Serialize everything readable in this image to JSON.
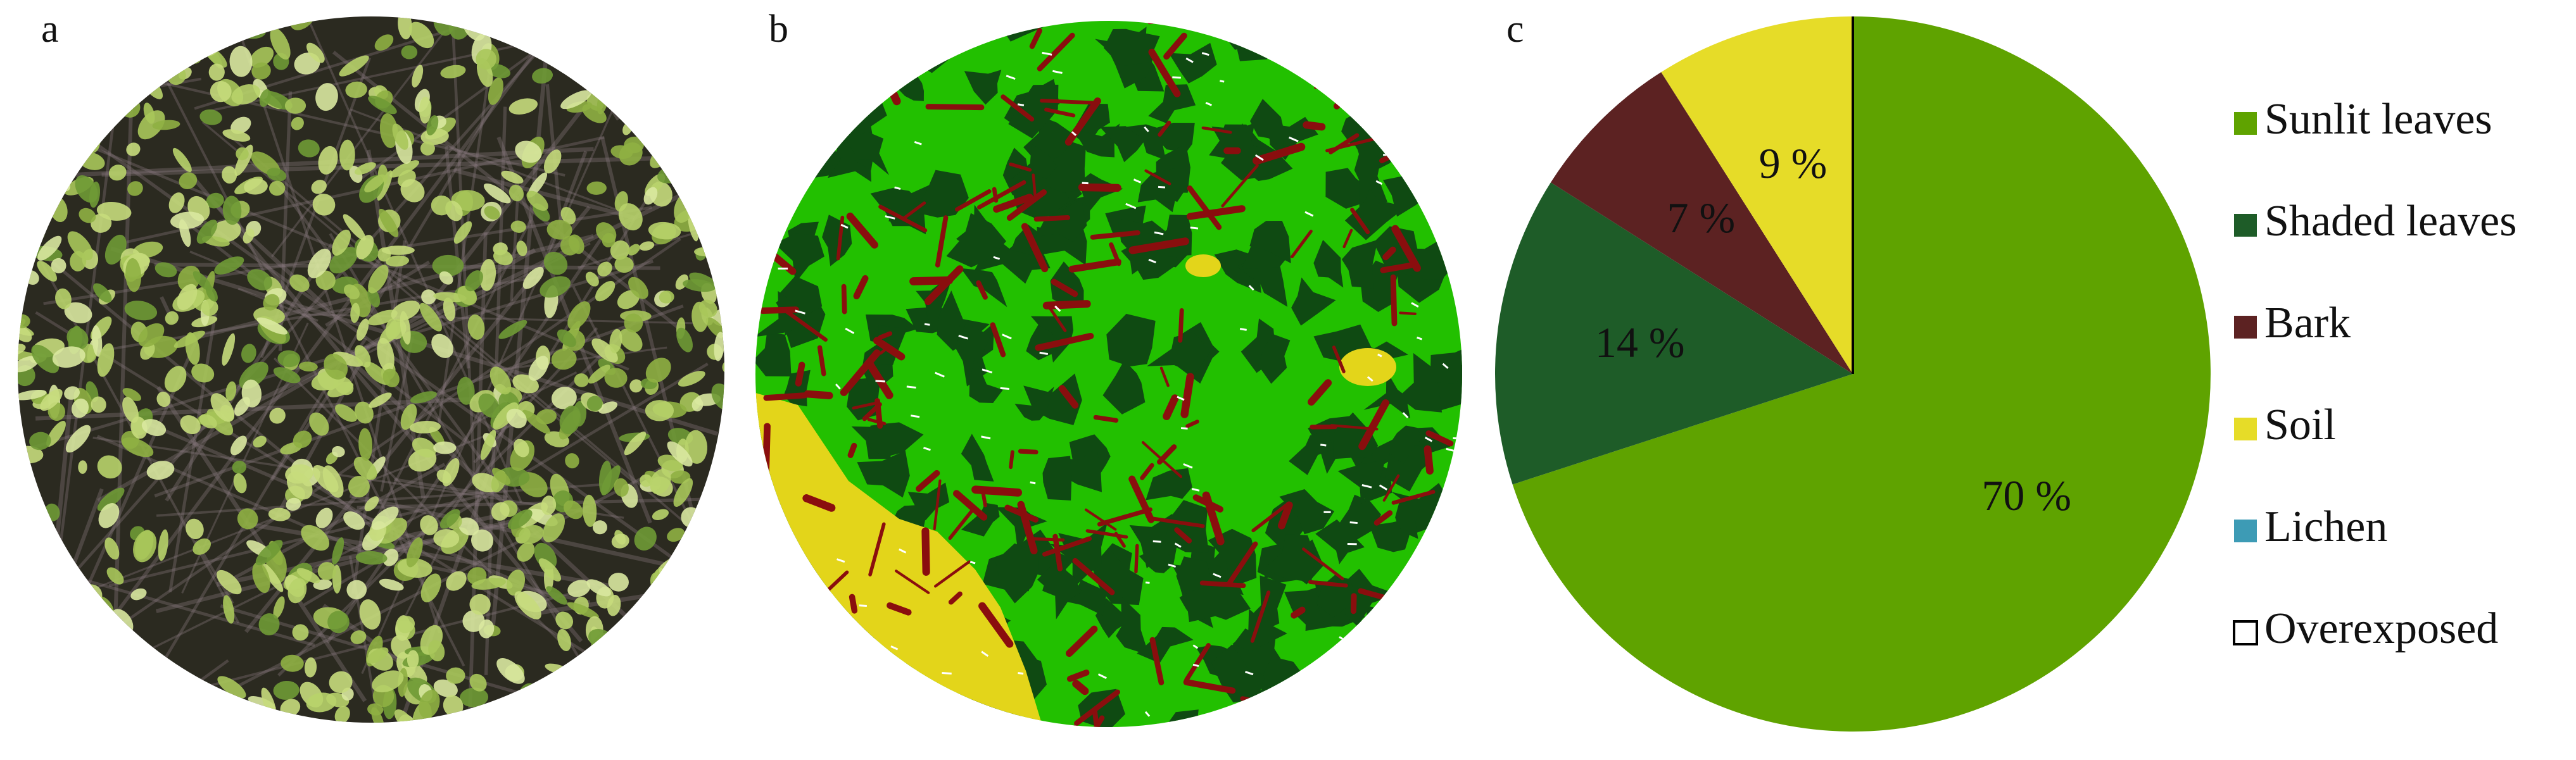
{
  "panel_labels": [
    "a",
    "b",
    "c"
  ],
  "chart_data": {
    "type": "pie",
    "categories": [
      "Sunlit leaves",
      "Shaded leaves",
      "Bark",
      "Soil",
      "Lichen",
      "Overexposed"
    ],
    "values": [
      70,
      14,
      7,
      9,
      0,
      0
    ],
    "value_labels": [
      "70 %",
      "14 %",
      "7 %",
      "9 %",
      null,
      null
    ],
    "colors": [
      "#5fa300",
      "#1e5c28",
      "#5c2222",
      "#e6dc28",
      "#3d9bb5",
      "#ffffff"
    ],
    "legend": "right"
  }
}
